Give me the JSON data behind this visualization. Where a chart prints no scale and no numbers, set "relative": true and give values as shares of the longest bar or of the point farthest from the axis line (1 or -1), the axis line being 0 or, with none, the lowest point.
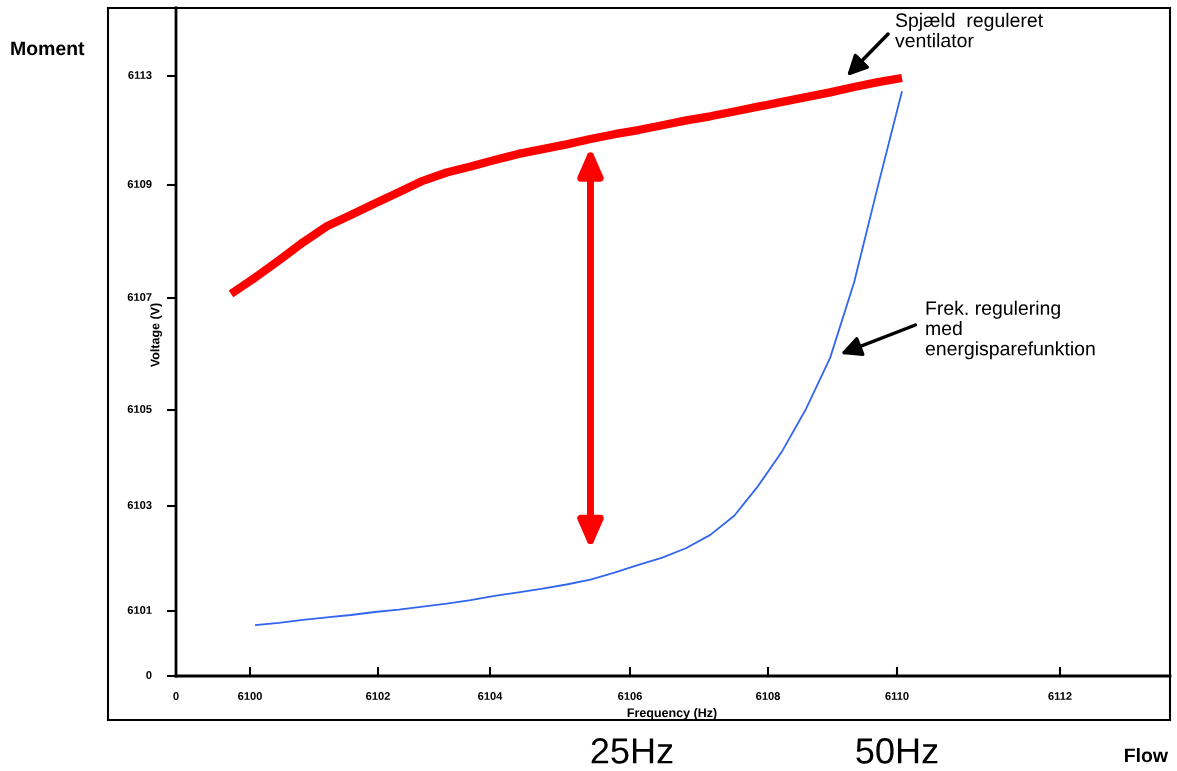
{
  "chart_data": {
    "type": "line",
    "relative": true,
    "xlabel": "Frequency (Hz)",
    "ylabel": "Voltage (V)",
    "categories": [
      null,
      null,
      null,
      null,
      null,
      null,
      null,
      null,
      null,
      null,
      null,
      null,
      null,
      null,
      null,
      null,
      null,
      null,
      null,
      null,
      null,
      null,
      null,
      null,
      null,
      null,
      null,
      null,
      null
    ],
    "series": [
      {
        "color": "#ff0000",
        "values": [
          0.639,
          0.666,
          0.695,
          0.725,
          0.752,
          0.771,
          0.79,
          0.809,
          0.828,
          0.842,
          0.852,
          0.863,
          0.873,
          0.881,
          0.889,
          0.898,
          0.906,
          0.913,
          0.921,
          0.929,
          0.936,
          0.944,
          0.952,
          0.96,
          0.968,
          0.976,
          0.985,
          0.993,
          1
        ]
      },
      {
        "color": "#3366ee",
        "values": [
          null,
          0.085,
          0.089,
          0.094,
          0.098,
          0.102,
          0.107,
          0.111,
          0.116,
          0.121,
          0.127,
          0.134,
          0.14,
          0.146,
          0.153,
          0.161,
          0.173,
          0.186,
          0.198,
          0.214,
          0.236,
          0.268,
          0.318,
          0.376,
          0.447,
          0.532,
          0.658,
          0.82,
          0.978
        ]
      }
    ],
    "annotations": [
      "Spjæld  reguleret\nventilator",
      "Frek. regulering\nmed\nenergisparefunktion",
      "0",
      "6101",
      "6103",
      "6105",
      "6107",
      "6109",
      "6113",
      "0",
      "6100",
      "6102",
      "6104",
      "6106",
      "6108",
      "6110",
      "6112",
      "25Hz",
      "50Hz",
      "Moment",
      "Flow"
    ]
  }
}
